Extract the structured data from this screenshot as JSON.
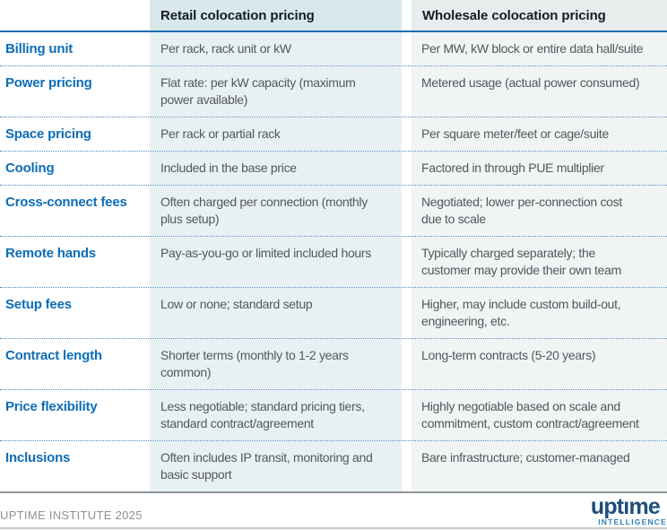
{
  "table": {
    "columns": {
      "retail_header": "Retail colocation pricing",
      "wholesale_header": "Wholesale colocation pricing"
    },
    "rows": [
      {
        "label": "Billing unit",
        "retail": "Per rack, rack unit or kW",
        "wholesale": "Per MW, kW block or entire data hall/suite"
      },
      {
        "label": "Power pricing",
        "retail": "Flat rate: per kW capacity (maximum\npower available)",
        "wholesale": "Metered usage (actual power consumed)"
      },
      {
        "label": "Space pricing",
        "retail": "Per rack or partial rack",
        "wholesale": "Per square meter/feet or cage/suite"
      },
      {
        "label": "Cooling",
        "retail": "Included in the base price",
        "wholesale": "Factored in through PUE multiplier"
      },
      {
        "label": "Cross-connect fees",
        "retail": "Often charged per connection (monthly\nplus setup)",
        "wholesale": "Negotiated; lower per-connection cost\ndue to scale"
      },
      {
        "label": "Remote hands",
        "retail": "Pay-as-you-go or limited included hours",
        "wholesale": "Typically charged separately; the\ncustomer may provide their own team"
      },
      {
        "label": "Setup fees",
        "retail": "Low or none; standard setup",
        "wholesale": "Higher, may include custom build-out,\nengineering, etc."
      },
      {
        "label": "Contract length",
        "retail": "Shorter terms (monthly to 1-2 years\ncommon)",
        "wholesale": "Long-term contracts (5-20 years)"
      },
      {
        "label": "Price flexibility",
        "retail": "Less negotiable; standard pricing tiers,\nstandard contract/agreement",
        "wholesale": "Highly negotiable based on scale and\ncommitment, custom contract/agreement"
      },
      {
        "label": "Inclusions",
        "retail": "Often includes IP transit, monitoring and\nbasic support",
        "wholesale": "Bare infrastructure; customer-managed"
      }
    ]
  },
  "footer": {
    "credit": "UPTIME INSTITUTE 2025",
    "logo_primary": "uptıme",
    "logo_secondary": "INTELLIGENCE"
  },
  "colors": {
    "label_blue": "#0d6db7",
    "header_underline": "#1e6cb0",
    "retail_header_bg": "#d8e8eb",
    "retail_body_bg": "#e7f1f4",
    "wholesale_header_bg": "#e8eced",
    "wholesale_body_bg": "#f1f4f4",
    "header_text": "#171c22",
    "body_text": "#54575b",
    "dotted_divider": "#4d85ba",
    "table_bottom_line": "#8f9498",
    "footer_text": "#8e9194",
    "logo_primary": "#1d4e7e",
    "logo_secondary": "#2e81b5"
  }
}
